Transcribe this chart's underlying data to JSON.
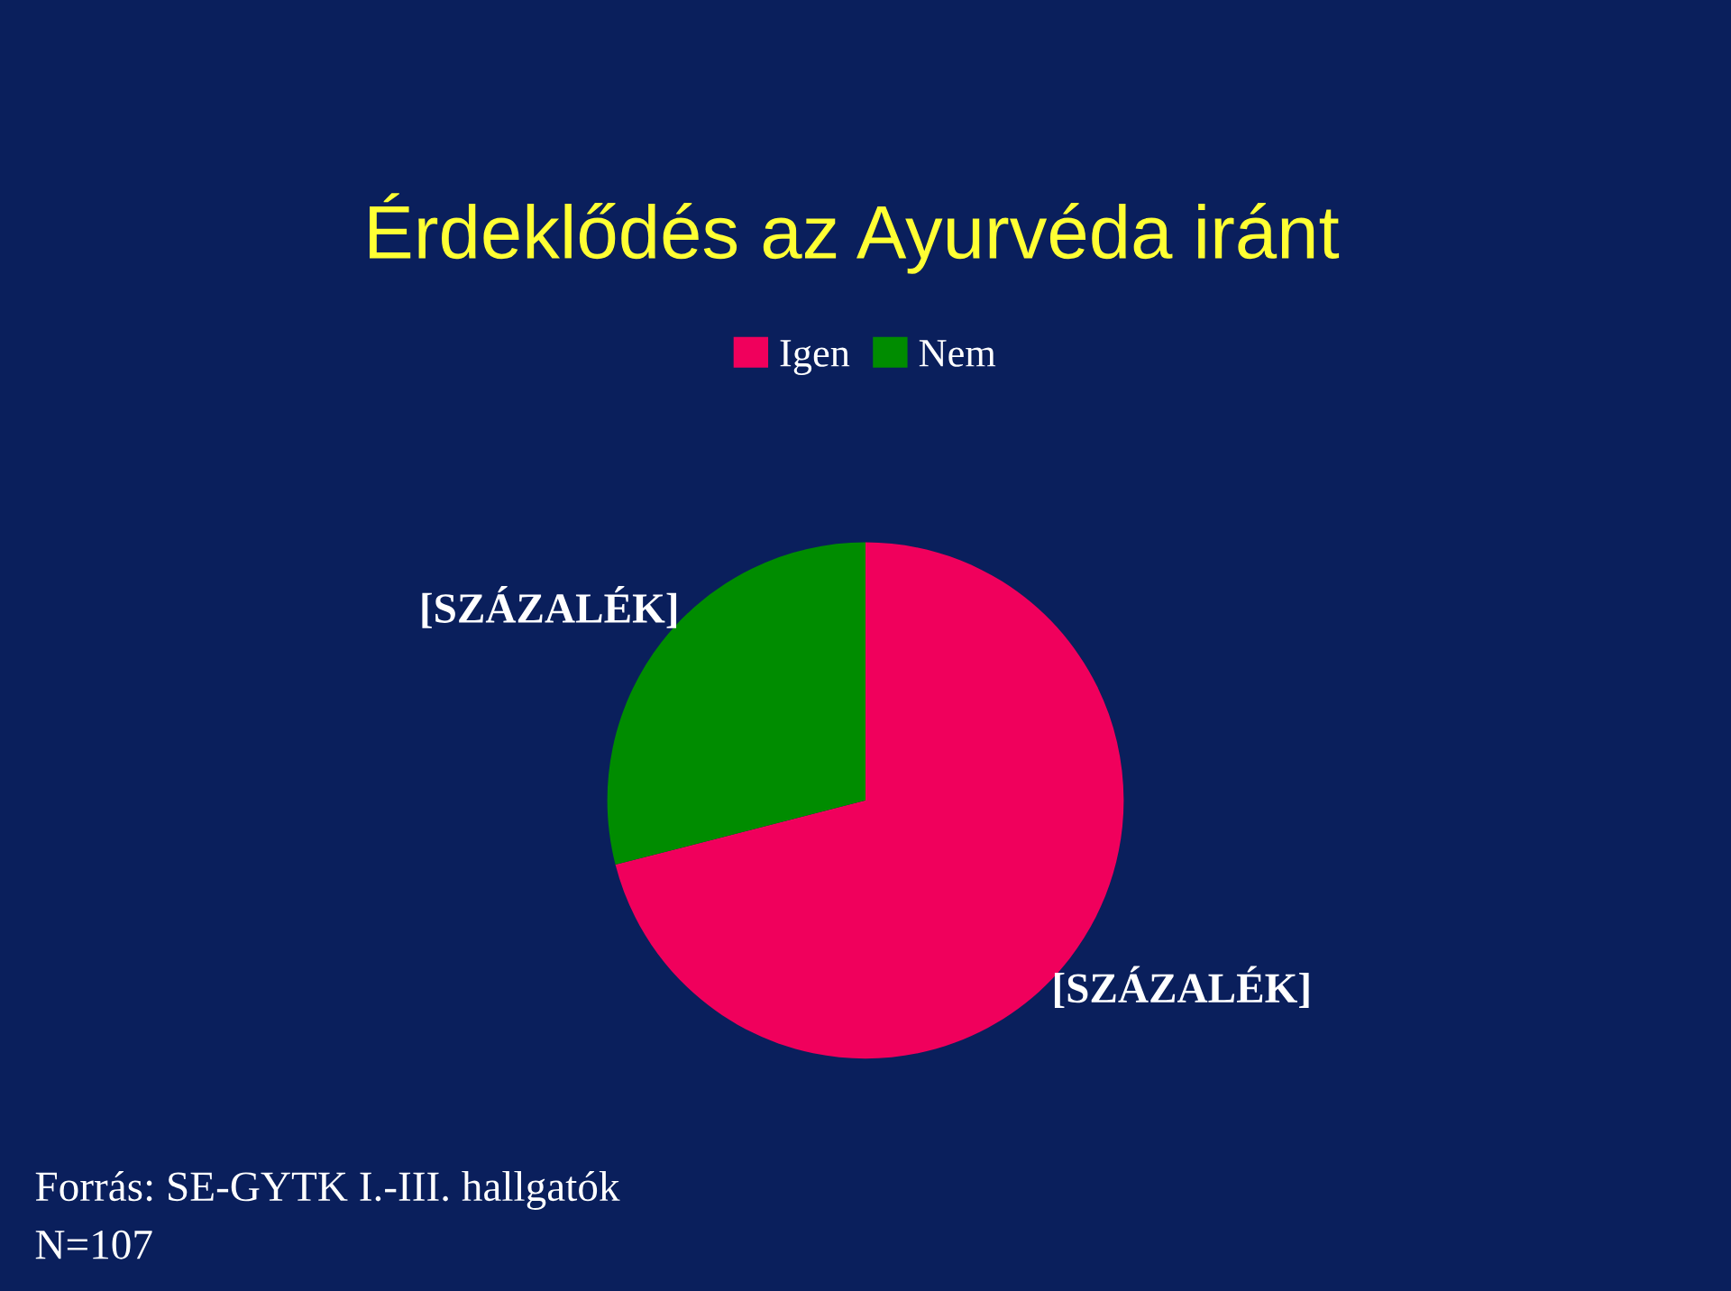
{
  "chart_data": {
    "type": "pie",
    "title": "Érdeklődés az Ayurvéda iránt",
    "categories": [
      "Igen",
      "Nem"
    ],
    "values": [
      71,
      29
    ],
    "colors": [
      "#f0005c",
      "#008c00"
    ],
    "value_labels": [
      "[SZÁZALÉK]",
      "[SZÁZALÉK]"
    ],
    "legend": "top",
    "annotations": [
      "Forrás: SE-GYTK I.-III. hallgatók",
      "N=107"
    ]
  }
}
